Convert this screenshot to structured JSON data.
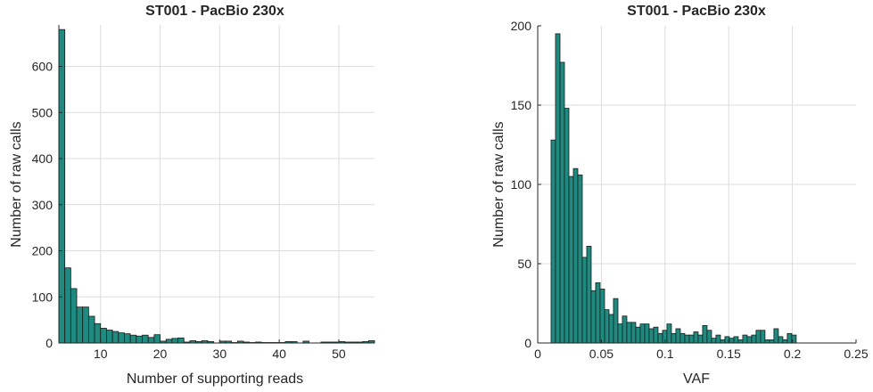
{
  "colors": {
    "bar_fill": "#1e8a80",
    "bar_edge": "#1a1a1a",
    "grid": "#dcdcdc",
    "text": "#262626"
  },
  "chart_data": [
    {
      "type": "bar",
      "title": "ST001 - PacBio 230x",
      "xlabel": "Number of supporting reads",
      "ylabel": "Number of raw calls",
      "xlim": [
        3,
        56
      ],
      "ylim": [
        0,
        690
      ],
      "bin_width": 1,
      "xticks": [
        10,
        20,
        30,
        40,
        50
      ],
      "yticks": [
        0,
        100,
        200,
        300,
        400,
        500,
        600
      ],
      "grid": true,
      "bins_start": [
        3,
        4,
        5,
        6,
        7,
        8,
        9,
        10,
        11,
        12,
        13,
        14,
        15,
        16,
        17,
        18,
        19,
        20,
        21,
        22,
        23,
        24,
        25,
        26,
        27,
        28,
        29,
        30,
        31,
        32,
        33,
        34,
        35,
        36,
        37,
        38,
        39,
        40,
        41,
        42,
        43,
        44,
        45,
        46,
        47,
        48,
        49,
        50,
        51,
        52,
        53,
        54,
        55
      ],
      "values": [
        680,
        163,
        118,
        78,
        78,
        58,
        42,
        32,
        28,
        25,
        22,
        20,
        17,
        15,
        17,
        12,
        18,
        4,
        8,
        10,
        11,
        2,
        5,
        3,
        5,
        3,
        0,
        4,
        4,
        1,
        4,
        2,
        1,
        2,
        1,
        1,
        1,
        1,
        3,
        3,
        0,
        4,
        0,
        0,
        2,
        2,
        2,
        3,
        2,
        2,
        2,
        3,
        5
      ]
    },
    {
      "type": "bar",
      "title": "ST001 - PacBio 230x",
      "xlabel": "VAF",
      "ylabel": "Number of raw calls",
      "xlim": [
        0,
        0.25
      ],
      "ylim": [
        0,
        200
      ],
      "bin_width": 0.0035,
      "xticks": [
        0,
        0.05,
        0.1,
        0.15,
        0.2,
        0.25
      ],
      "xtick_labels": [
        "0",
        "0.05",
        "0.1",
        "0.15",
        "0.2",
        "0.25"
      ],
      "yticks": [
        0,
        50,
        100,
        150,
        200
      ],
      "grid": true,
      "bins_start": [
        0.0105,
        0.014,
        0.0175,
        0.021,
        0.0245,
        0.028,
        0.0315,
        0.035,
        0.0385,
        0.042,
        0.0455,
        0.049,
        0.0525,
        0.056,
        0.0595,
        0.063,
        0.0665,
        0.07,
        0.0735,
        0.077,
        0.0805,
        0.084,
        0.0875,
        0.091,
        0.0945,
        0.098,
        0.1015,
        0.105,
        0.1085,
        0.112,
        0.1155,
        0.119,
        0.1225,
        0.126,
        0.1295,
        0.133,
        0.1365,
        0.14,
        0.1435,
        0.147,
        0.1505,
        0.154,
        0.1575,
        0.161,
        0.1645,
        0.168,
        0.1715,
        0.175,
        0.1785,
        0.182,
        0.1855,
        0.189,
        0.1925,
        0.196,
        0.1995,
        0.203,
        0.2065,
        0.21,
        0.2135
      ],
      "values": [
        128,
        195,
        177,
        148,
        105,
        110,
        106,
        54,
        61,
        33,
        38,
        34,
        21,
        18,
        28,
        12,
        17,
        13,
        13,
        10,
        12,
        12,
        9,
        10,
        6,
        8,
        12,
        6,
        9,
        6,
        5,
        5,
        7,
        5,
        11,
        8,
        3,
        5,
        2,
        4,
        3,
        4,
        2,
        5,
        4,
        5,
        8,
        8,
        2,
        2,
        9,
        4,
        2,
        6,
        5,
        0,
        0,
        0,
        0
      ]
    }
  ]
}
